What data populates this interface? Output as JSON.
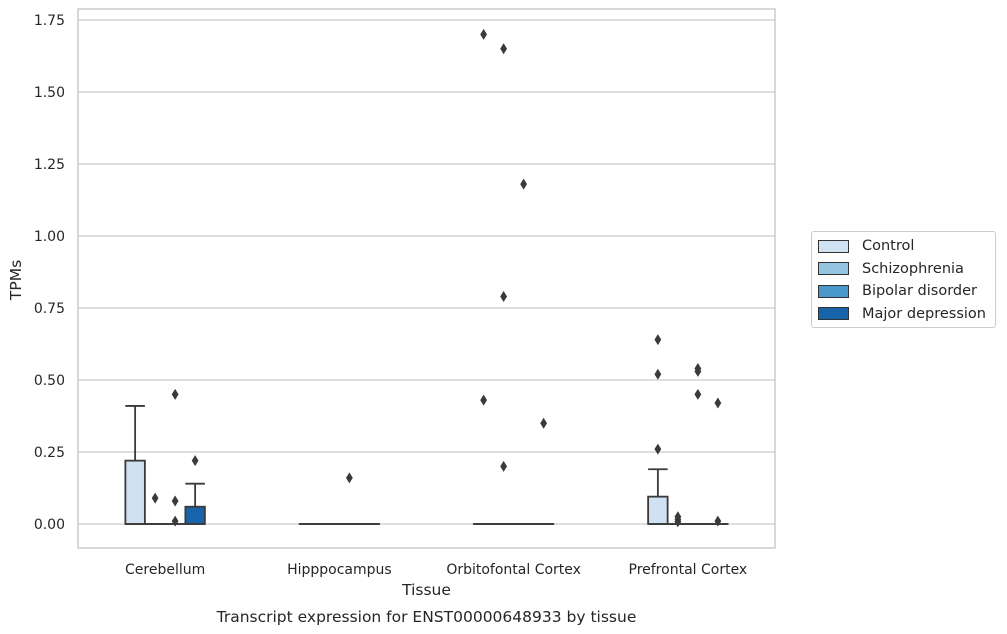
{
  "chart_data": {
    "type": "box",
    "title": "",
    "caption": "Transcript expression for ENST00000648933 by tissue",
    "xlabel": "Tissue",
    "ylabel": "TPMs",
    "ylim": [
      -0.085,
      1.78
    ],
    "yticks": [
      "0.00",
      "0.25",
      "0.50",
      "0.75",
      "1.00",
      "1.25",
      "1.50",
      "1.75"
    ],
    "grid": "horizontal",
    "legend_position": "right",
    "categories": [
      "Cerebellum",
      "Hipppocampus",
      "Orbitofontal Cortex",
      "Prefrontal Cortex"
    ],
    "series": [
      {
        "name": "Control",
        "color": "#d0e1f2",
        "boxes": [
          {
            "q1": 0,
            "median": 0,
            "q3": 0.22,
            "whisker_low": 0,
            "whisker_high": 0.41,
            "outliers": []
          },
          {
            "q1": 0,
            "median": 0,
            "q3": 0,
            "whisker_low": 0,
            "whisker_high": 0,
            "outliers": []
          },
          {
            "q1": 0,
            "median": 0,
            "q3": 0,
            "whisker_low": 0,
            "whisker_high": 0,
            "outliers": [
              1.7,
              0.43
            ]
          },
          {
            "q1": 0,
            "median": 0,
            "q3": 0.095,
            "whisker_low": 0,
            "whisker_high": 0.19,
            "outliers": [
              0.64,
              0.52,
              0.26
            ]
          }
        ]
      },
      {
        "name": "Schizophrenia",
        "color": "#94c4df",
        "boxes": [
          {
            "q1": 0,
            "median": 0,
            "q3": 0,
            "whisker_low": 0,
            "whisker_high": 0,
            "outliers": [
              0.09
            ]
          },
          {
            "q1": 0,
            "median": 0,
            "q3": 0,
            "whisker_low": 0,
            "whisker_high": 0,
            "outliers": []
          },
          {
            "q1": 0,
            "median": 0,
            "q3": 0,
            "whisker_low": 0,
            "whisker_high": 0,
            "outliers": [
              1.65,
              0.79,
              0.2
            ]
          },
          {
            "q1": 0,
            "median": 0,
            "q3": 0,
            "whisker_low": 0,
            "whisker_high": 0,
            "outliers": [
              0.025,
              0.015,
              0.008
            ]
          }
        ]
      },
      {
        "name": "Bipolar disorder",
        "color": "#4a98c9",
        "boxes": [
          {
            "q1": 0,
            "median": 0,
            "q3": 0,
            "whisker_low": 0,
            "whisker_high": 0,
            "outliers": [
              0.45,
              0.08,
              0.01
            ]
          },
          {
            "q1": 0,
            "median": 0,
            "q3": 0,
            "whisker_low": 0,
            "whisker_high": 0,
            "outliers": [
              0.16
            ]
          },
          {
            "q1": 0,
            "median": 0,
            "q3": 0,
            "whisker_low": 0,
            "whisker_high": 0,
            "outliers": [
              1.18
            ]
          },
          {
            "q1": 0,
            "median": 0,
            "q3": 0,
            "whisker_low": 0,
            "whisker_high": 0,
            "outliers": [
              0.54,
              0.53,
              0.45
            ]
          }
        ]
      },
      {
        "name": "Major depression",
        "color": "#1764ab",
        "boxes": [
          {
            "q1": 0,
            "median": 0,
            "q3": 0.06,
            "whisker_low": 0,
            "whisker_high": 0.14,
            "outliers": [
              0.22
            ]
          },
          {
            "q1": 0,
            "median": 0,
            "q3": 0,
            "whisker_low": 0,
            "whisker_high": 0,
            "outliers": []
          },
          {
            "q1": 0,
            "median": 0,
            "q3": 0,
            "whisker_low": 0,
            "whisker_high": 0,
            "outliers": [
              0.35
            ]
          },
          {
            "q1": 0,
            "median": 0,
            "q3": 0,
            "whisker_low": 0,
            "whisker_high": 0,
            "outliers": [
              0.42,
              0.01
            ]
          }
        ]
      }
    ]
  }
}
